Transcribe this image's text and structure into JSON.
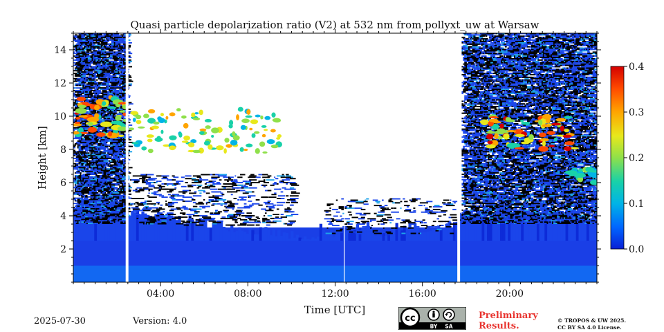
{
  "chart_data": {
    "type": "heatmap",
    "title": "Quasi particle depolarization ratio (V2) at 532 nm from pollyxt_uw at Warsaw",
    "xlabel": "Time [UTC]",
    "ylabel": "Height [km]",
    "xlim": [
      0,
      24
    ],
    "ylim": [
      0,
      15
    ],
    "x_ticks": [
      {
        "value": 4,
        "label": "04:00"
      },
      {
        "value": 8,
        "label": "08:00"
      },
      {
        "value": 12,
        "label": "12:00"
      },
      {
        "value": 16,
        "label": "16:00"
      },
      {
        "value": 20,
        "label": "20:00"
      }
    ],
    "y_ticks": [
      {
        "value": 2,
        "label": "2"
      },
      {
        "value": 4,
        "label": "4"
      },
      {
        "value": 6,
        "label": "6"
      },
      {
        "value": 8,
        "label": "8"
      },
      {
        "value": 10,
        "label": "10"
      },
      {
        "value": 12,
        "label": "12"
      },
      {
        "value": 14,
        "label": "14"
      }
    ],
    "colorbar": {
      "min": 0.0,
      "max": 0.4,
      "ticks": [
        {
          "value": 0.0,
          "label": "0.0"
        },
        {
          "value": 0.1,
          "label": "0.1"
        },
        {
          "value": 0.2,
          "label": "0.2"
        },
        {
          "value": 0.3,
          "label": "0.3"
        },
        {
          "value": 0.4,
          "label": "0.4"
        }
      ],
      "colormap": [
        "#0a1fd6",
        "#0066ff",
        "#00b4e6",
        "#19d1a8",
        "#8fe04a",
        "#e8e81c",
        "#ffa500",
        "#ff4a00",
        "#d40000"
      ]
    },
    "data_gaps_hours": [
      2.4,
      17.6,
      12.4
    ],
    "regions": [
      {
        "name": "low-boundary-layer",
        "t_start": 0,
        "t_end": 24,
        "h_bottom": 0,
        "h_top": 3.5,
        "value": 0.02
      },
      {
        "name": "early-cirrus-noise",
        "t_start": 0,
        "t_end": 2.4,
        "h_bottom": 3.5,
        "h_top": 15,
        "value": 0.02
      },
      {
        "name": "early-cirrus-high",
        "t_start": 0.1,
        "t_end": 2.4,
        "h_bottom": 8.8,
        "h_top": 11.2,
        "value": 0.28
      },
      {
        "name": "midday-cirrus",
        "t_start": 2.6,
        "t_end": 9.5,
        "h_bottom": 7.8,
        "h_top": 10.5,
        "value": 0.22
      },
      {
        "name": "evening-cirrus-noise",
        "t_start": 17.8,
        "t_end": 24,
        "h_bottom": 3.5,
        "h_top": 15,
        "value": 0.03
      },
      {
        "name": "evening-cirrus-high",
        "t_start": 18.8,
        "t_end": 23,
        "h_bottom": 8,
        "h_top": 10,
        "value": 0.3
      },
      {
        "name": "late-layer",
        "t_start": 22.8,
        "t_end": 24,
        "h_bottom": 5.8,
        "h_top": 6.8,
        "value": 0.15
      }
    ]
  },
  "footer": {
    "date": "2025-07-30",
    "version": "Version: 4.0",
    "prelim_line1": "Preliminary",
    "prelim_line2": "Results.",
    "copyright_line1": "© TROPOS & UW 2025.",
    "copyright_line2": "CC BY SA 4.0 License.",
    "cc_label_by": "BY",
    "cc_label_sa": "SA"
  }
}
